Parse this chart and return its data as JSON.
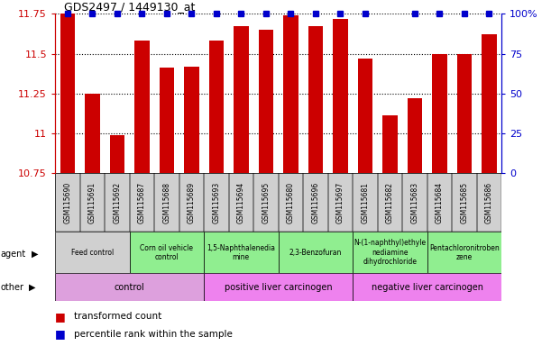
{
  "title": "GDS2497 / 1449130_at",
  "samples": [
    "GSM115690",
    "GSM115691",
    "GSM115692",
    "GSM115687",
    "GSM115688",
    "GSM115689",
    "GSM115693",
    "GSM115694",
    "GSM115695",
    "GSM115680",
    "GSM115696",
    "GSM115697",
    "GSM115681",
    "GSM115682",
    "GSM115683",
    "GSM115684",
    "GSM115685",
    "GSM115686"
  ],
  "bar_values": [
    11.75,
    11.25,
    10.99,
    11.58,
    11.41,
    11.42,
    11.58,
    11.67,
    11.65,
    11.74,
    11.67,
    11.72,
    11.47,
    11.11,
    11.22,
    11.5,
    11.5,
    11.62
  ],
  "percentile_at_top": [
    true,
    true,
    true,
    true,
    true,
    true,
    true,
    true,
    true,
    true,
    true,
    true,
    true,
    false,
    true,
    true,
    true,
    true
  ],
  "ylim": [
    10.75,
    11.75
  ],
  "yticks": [
    10.75,
    11.0,
    11.25,
    11.5,
    11.75
  ],
  "ytick_labels": [
    "10.75",
    "11",
    "11.25",
    "11.5",
    "11.75"
  ],
  "right_yticks": [
    0,
    25,
    50,
    75,
    100
  ],
  "right_ytick_labels": [
    "0",
    "25",
    "50",
    "75",
    "100%"
  ],
  "bar_color": "#cc0000",
  "percentile_color": "#0000cc",
  "left_axis_color": "#cc0000",
  "right_axis_color": "#0000cc",
  "xtick_bg_color": "#d0d0d0",
  "agent_groups": [
    {
      "label": "Feed control",
      "start": 0,
      "end": 3,
      "color": "#d0d0d0"
    },
    {
      "label": "Corn oil vehicle\ncontrol",
      "start": 3,
      "end": 6,
      "color": "#90ee90"
    },
    {
      "label": "1,5-Naphthalenedia\nmine",
      "start": 6,
      "end": 9,
      "color": "#90ee90"
    },
    {
      "label": "2,3-Benzofuran",
      "start": 9,
      "end": 12,
      "color": "#90ee90"
    },
    {
      "label": "N-(1-naphthyl)ethyle\nnediamine\ndihydrochloride",
      "start": 12,
      "end": 15,
      "color": "#90ee90"
    },
    {
      "label": "Pentachloronitroben\nzene",
      "start": 15,
      "end": 18,
      "color": "#90ee90"
    }
  ],
  "other_groups": [
    {
      "label": "control",
      "start": 0,
      "end": 6,
      "color": "#dda0dd"
    },
    {
      "label": "positive liver carcinogen",
      "start": 6,
      "end": 12,
      "color": "#ee82ee"
    },
    {
      "label": "negative liver carcinogen",
      "start": 12,
      "end": 18,
      "color": "#ee82ee"
    }
  ],
  "legend_bar_label": "transformed count",
  "legend_pct_label": "percentile rank within the sample"
}
